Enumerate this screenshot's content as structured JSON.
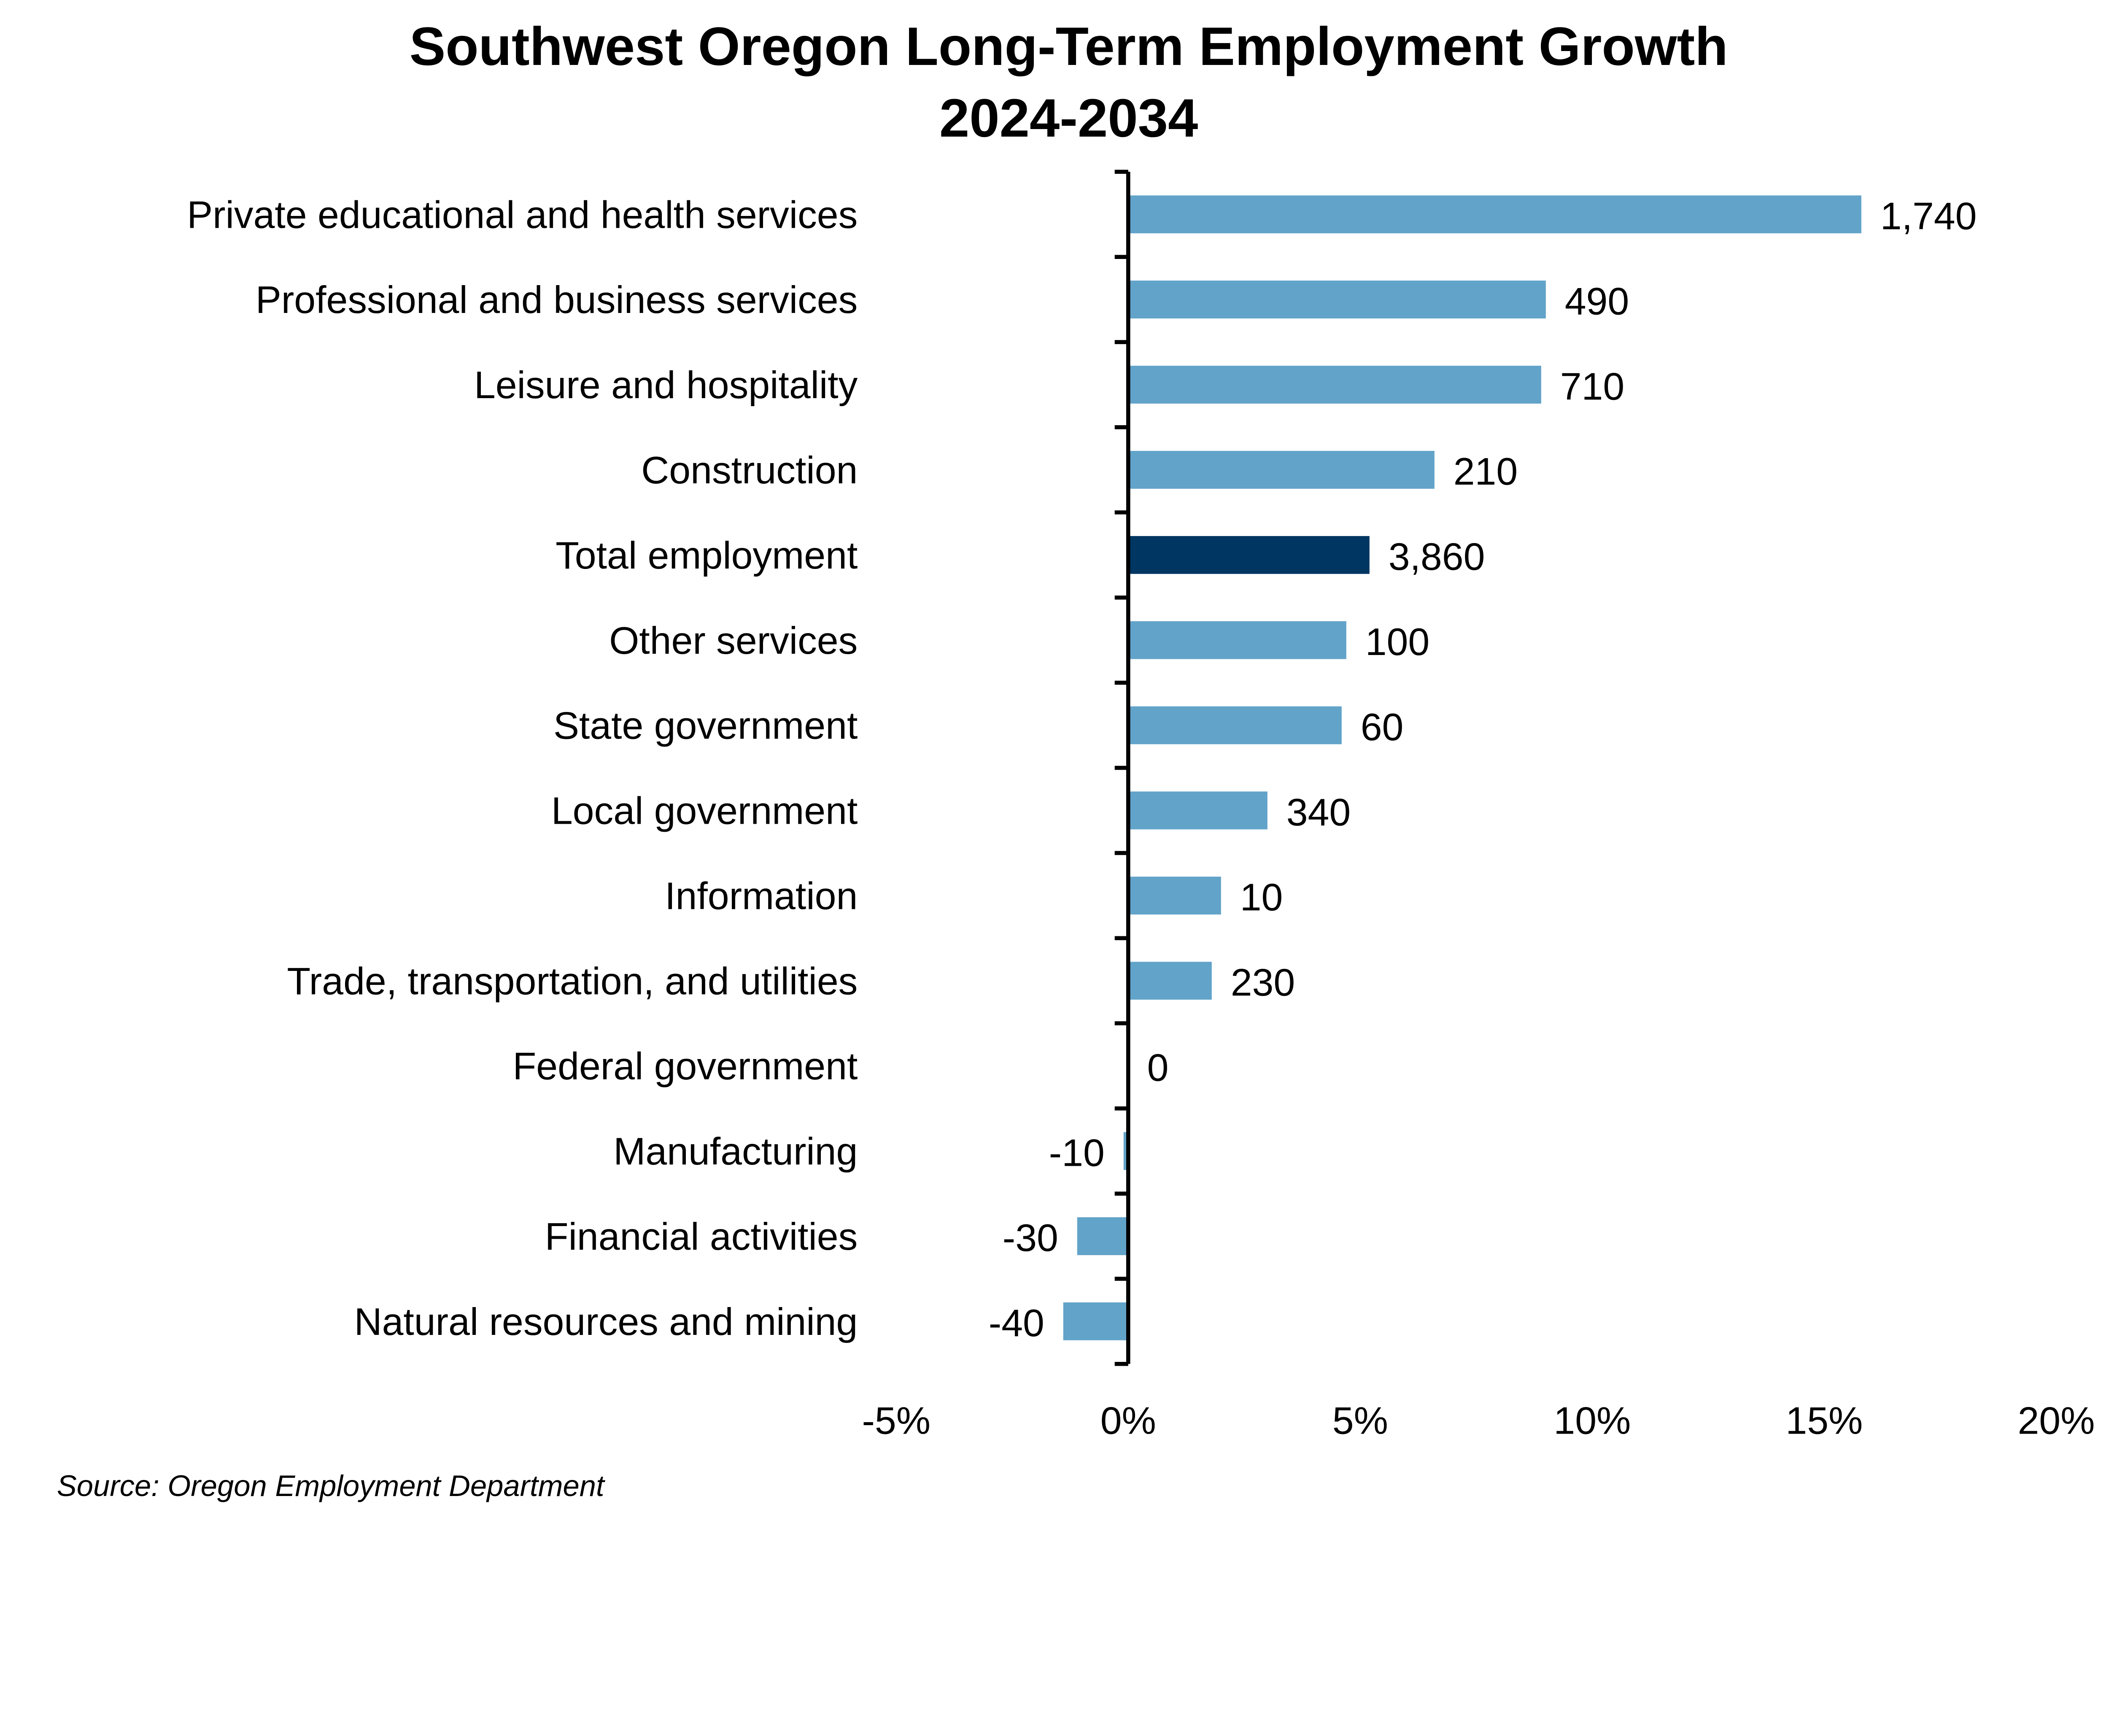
{
  "chart_data": {
    "type": "bar",
    "orientation": "horizontal",
    "title": "Southwest Oregon Long-Term Employment Growth",
    "subtitle": "2024-2034",
    "source": "Source: Oregon Employment Department",
    "categories": [
      "Private educational and health services",
      "Professional and business services",
      "Leisure and hospitality",
      "Construction",
      "Total employment",
      "Other services",
      "State government",
      "Local government",
      "Information",
      "Trade, transportation, and utilities",
      "Federal government",
      "Manufacturing",
      "Financial activities",
      "Natural resources and mining"
    ],
    "values_percent": [
      15.8,
      9.0,
      8.9,
      6.6,
      5.2,
      4.7,
      4.6,
      3.0,
      2.0,
      1.8,
      0.0,
      -0.1,
      -1.1,
      -1.4
    ],
    "data_labels": [
      "1,740",
      "490",
      "710",
      "210",
      "3,860",
      "100",
      "60",
      "340",
      "10",
      "230",
      "0",
      "-10",
      "-30",
      "-40"
    ],
    "xlim": [
      -5,
      20
    ],
    "xticks": [
      -5,
      0,
      5,
      10,
      15,
      20
    ],
    "xtick_labels": [
      "-5%",
      "0%",
      "5%",
      "10%",
      "15%",
      "20%"
    ],
    "grid": false,
    "legend": "none",
    "colors": {
      "bar": "#62a3c9",
      "highlight": "#003662",
      "highlight_category": "Total employment"
    }
  }
}
